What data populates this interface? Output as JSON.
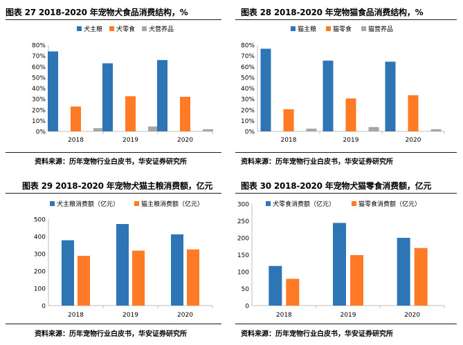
{
  "colors": {
    "blue": "#2E75B6",
    "orange": "#FF7A24",
    "gray": "#A6A6A6",
    "axis": "#BFBFBF"
  },
  "source_text": "资料来源：历年宠物行业白皮书，华安证券研究所",
  "panels": [
    {
      "title": "图表 27 2018-2020 年宠物犬食品消费结构，%"
    },
    {
      "title": "图表 28 2018-2020 年宠物猫食品消费结构，%"
    },
    {
      "title": "图表 29 2018-2020 年宠物犬猫主粮消费额，亿元"
    },
    {
      "title": "图表 30 2018-2020 年宠物犬猫零食消费额，亿元"
    }
  ],
  "chart_data": [
    {
      "type": "bar",
      "title": "图表 27 2018-2020 年宠物犬食品消费结构，%",
      "categories": [
        "2018",
        "2019",
        "2020"
      ],
      "series": [
        {
          "name": "犬主粮",
          "color": "#2E75B6",
          "values": [
            74,
            63,
            66
          ]
        },
        {
          "name": "犬零食",
          "color": "#FF7A24",
          "values": [
            23,
            32.5,
            32
          ]
        },
        {
          "name": "犬营养品",
          "color": "#A6A6A6",
          "values": [
            3,
            4.5,
            2
          ]
        }
      ],
      "ylim": [
        0,
        80
      ],
      "yticks": [
        "0%",
        "10%",
        "20%",
        "30%",
        "40%",
        "50%",
        "60%",
        "70%",
        "80%"
      ],
      "legend": "top"
    },
    {
      "type": "bar",
      "title": "图表 28 2018-2020 年宠物猫食品消费结构，%",
      "categories": [
        "2018",
        "2019",
        "2020"
      ],
      "series": [
        {
          "name": "猫主粮",
          "color": "#2E75B6",
          "values": [
            76.5,
            65.5,
            64.5
          ]
        },
        {
          "name": "猫零食",
          "color": "#FF7A24",
          "values": [
            20.5,
            30.5,
            33.5
          ]
        },
        {
          "name": "猫营养品",
          "color": "#A6A6A6",
          "values": [
            2.5,
            4,
            2
          ]
        }
      ],
      "ylim": [
        0,
        80
      ],
      "yticks": [
        "0%",
        "10%",
        "20%",
        "30%",
        "40%",
        "50%",
        "60%",
        "70%",
        "80%"
      ],
      "legend": "top"
    },
    {
      "type": "bar",
      "title": "图表 29 2018-2020 年宠物犬猫主粮消费额，亿元",
      "categories": [
        "2018",
        "2019",
        "2020"
      ],
      "series": [
        {
          "name": "犬主粮消费额（亿元）",
          "color": "#2E75B6",
          "values": [
            378,
            472,
            412
          ]
        },
        {
          "name": "猫主粮消费额（亿元）",
          "color": "#FF7A24",
          "values": [
            288,
            318,
            325
          ]
        }
      ],
      "ylim": [
        0,
        500
      ],
      "yticks": [
        "0",
        "100",
        "200",
        "300",
        "400",
        "500"
      ],
      "legend": "top"
    },
    {
      "type": "bar",
      "title": "图表 30 2018-2020 年宠物犬猫零食消费额，亿元",
      "categories": [
        "2018",
        "2019",
        "2020"
      ],
      "series": [
        {
          "name": "犬零食消费额（亿元）",
          "color": "#2E75B6",
          "values": [
            117,
            244,
            200
          ]
        },
        {
          "name": "猫零食消费额（亿元）",
          "color": "#FF7A24",
          "values": [
            79,
            149,
            170
          ]
        }
      ],
      "ylim": [
        0,
        300
      ],
      "yticks": [
        "0",
        "50",
        "100",
        "150",
        "200",
        "250",
        "300"
      ],
      "legend": "top"
    }
  ]
}
